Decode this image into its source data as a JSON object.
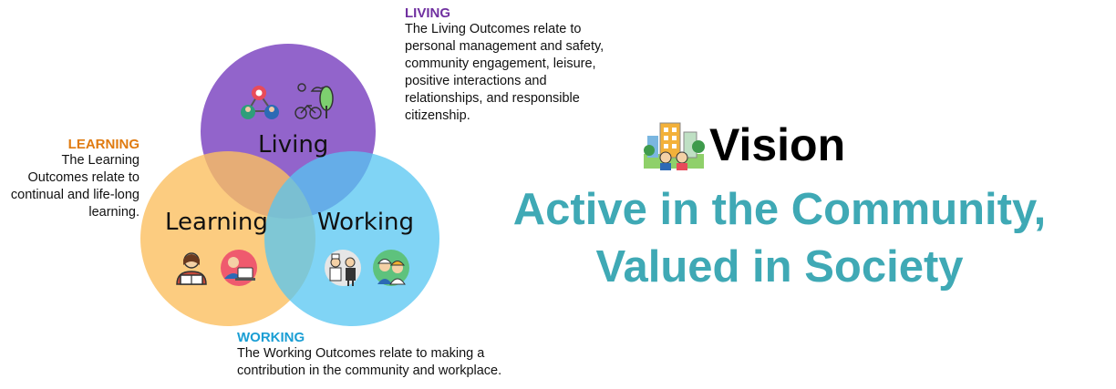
{
  "colors": {
    "living": "#8c5cc8",
    "learning": "#fbbf60",
    "working": "#55c6f2",
    "living_title": "#7030a0",
    "learning_title": "#e07b10",
    "working_title": "#1a9ed4",
    "headline": "#3fa9b5"
  },
  "living": {
    "title": "LIVING",
    "desc": "The Living Outcomes relate to personal management and safety, community engagement, leisure, positive interactions and relationships, and responsible citizenship.",
    "circle_label": "Living",
    "icons": [
      "people-network-icon",
      "park-bicycle-icon"
    ]
  },
  "learning": {
    "title": "LEARNING",
    "desc": "The Learning Outcomes relate to continual and life-long learning.",
    "circle_label": "Learning",
    "icons": [
      "reading-person-icon",
      "laptop-learner-icon"
    ]
  },
  "working": {
    "title": "WORKING",
    "desc": "The Working Outcomes relate to making a contribution in the community and workplace.",
    "circle_label": "Working",
    "icons": [
      "chef-waiter-icon",
      "workers-icon"
    ]
  },
  "vision": {
    "title": "Vision",
    "icon": "community-city-icon",
    "headline_line1": "Active in the Community,",
    "headline_line2": "Valued in Society"
  }
}
